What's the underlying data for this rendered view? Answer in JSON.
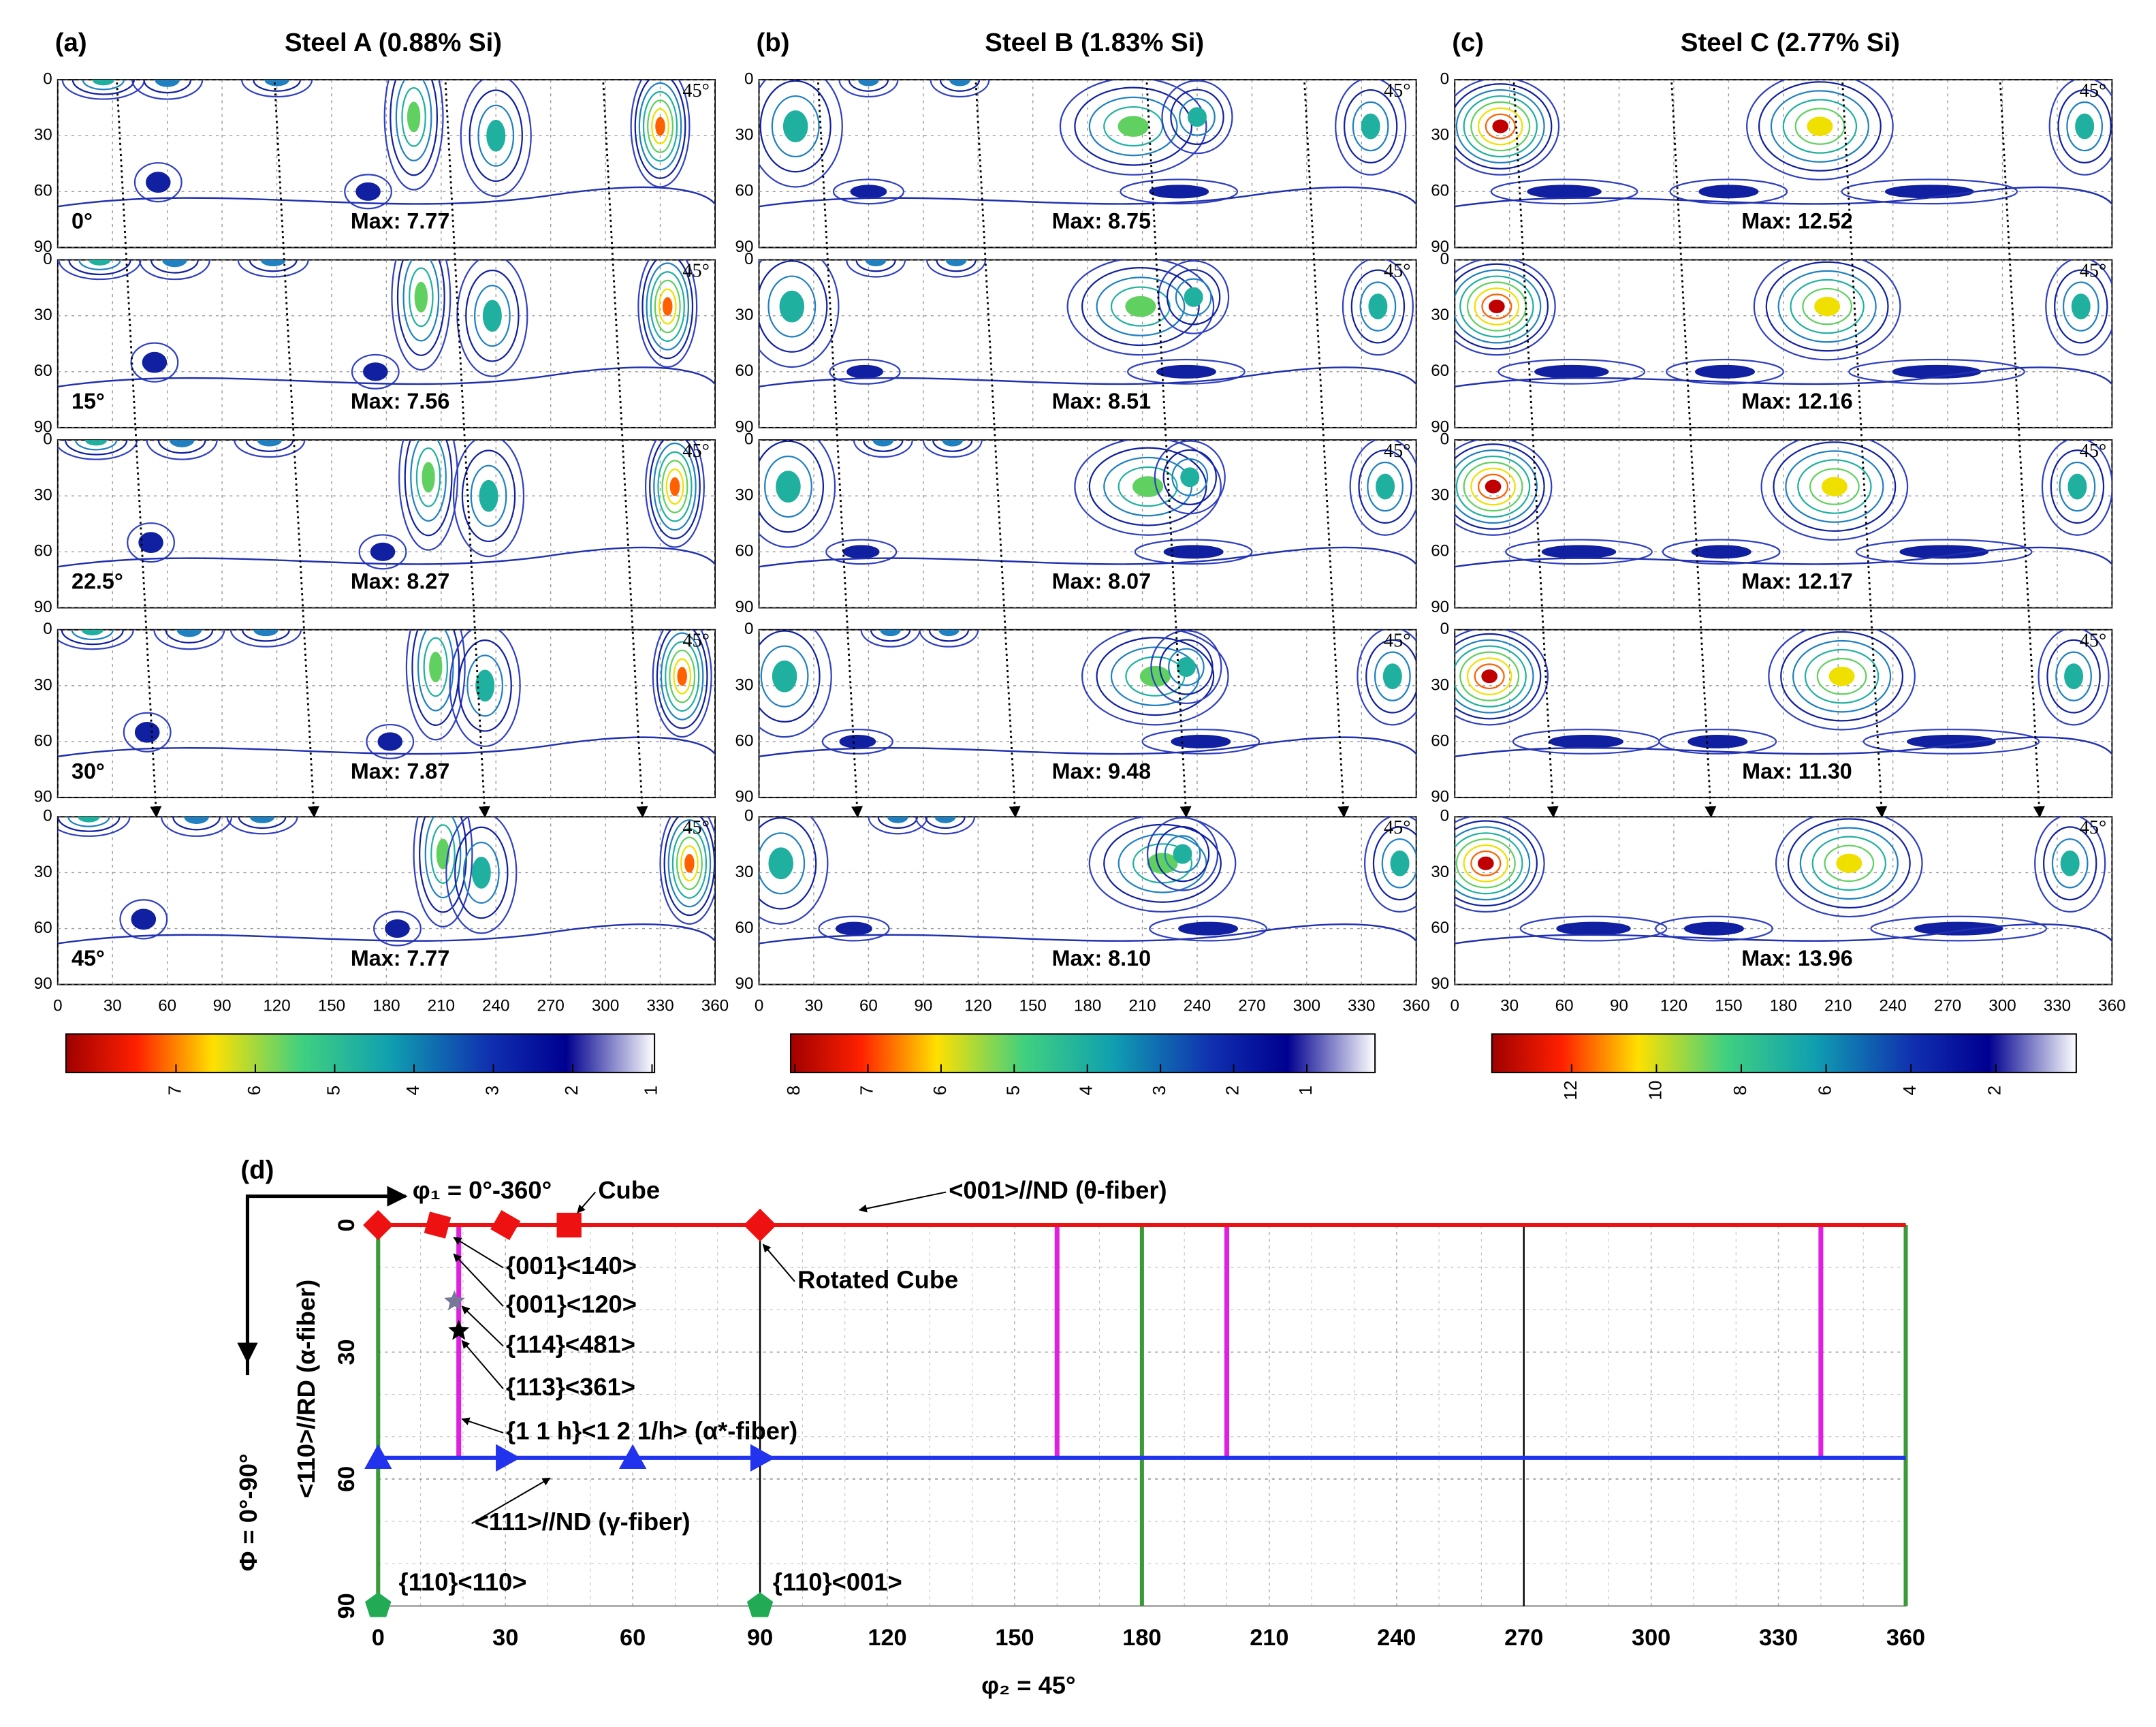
{
  "panels": [
    {
      "label": "(a)",
      "title": "Steel A (0.88% Si)",
      "maps": [
        {
          "angle": "0°",
          "max": "Max: 7.77"
        },
        {
          "angle": "15°",
          "max": "Max: 7.56"
        },
        {
          "angle": "22.5°",
          "max": "Max: 8.27"
        },
        {
          "angle": "30°",
          "max": "Max: 7.87"
        },
        {
          "angle": "45°",
          "max": "Max: 7.77"
        }
      ],
      "colorbar_ticks": [
        7,
        6,
        5,
        4,
        3,
        2,
        1
      ]
    },
    {
      "label": "(b)",
      "title": "Steel B (1.83% Si)",
      "maps": [
        {
          "max": "Max: 8.75"
        },
        {
          "max": "Max: 8.51"
        },
        {
          "max": "Max: 8.07"
        },
        {
          "max": "Max: 9.48"
        },
        {
          "max": "Max: 8.10"
        }
      ],
      "colorbar_ticks": [
        8,
        7,
        6,
        5,
        4,
        3,
        2,
        1
      ]
    },
    {
      "label": "(c)",
      "title": "Steel C (2.77% Si)",
      "maps": [
        {
          "max": "Max: 12.52"
        },
        {
          "max": "Max: 12.16"
        },
        {
          "max": "Max: 12.17"
        },
        {
          "max": "Max: 11.30"
        },
        {
          "max": "Max: 13.96"
        }
      ],
      "colorbar_ticks": [
        12,
        10,
        8,
        6,
        4,
        2
      ]
    }
  ],
  "corner_label": "45°",
  "map_xticks": [
    0,
    30,
    60,
    90,
    120,
    150,
    180,
    210,
    240,
    270,
    300,
    330,
    360
  ],
  "map_yticks": [
    0,
    30,
    60,
    90
  ],
  "panel_d": {
    "label": "(d)",
    "x_axis_arrow": "φ₁ = 0°-360°",
    "y_axis_arrow": "Φ = 0°-90°",
    "y_title": "<110>//RD (α-fiber)",
    "x_title": "φ₂ = 45°",
    "xticks": [
      0,
      30,
      60,
      90,
      120,
      150,
      180,
      210,
      240,
      270,
      300,
      330,
      360
    ],
    "yticks": [
      0,
      30,
      60,
      90
    ],
    "annotations": [
      {
        "text": "Cube"
      },
      {
        "text": "<001>//ND (θ-fiber)"
      },
      {
        "text": "Rotated Cube"
      },
      {
        "text": "{001}<140>"
      },
      {
        "text": "{001}<120>"
      },
      {
        "text": "{114}<481>"
      },
      {
        "text": "{113}<361>"
      },
      {
        "text": "{1 1 h}<1 2 1/h> (α*-fiber)"
      },
      {
        "text": "<111>//ND (γ-fiber)"
      },
      {
        "text": "{110}<110>"
      },
      {
        "text": "{110}<001>"
      }
    ]
  }
}
